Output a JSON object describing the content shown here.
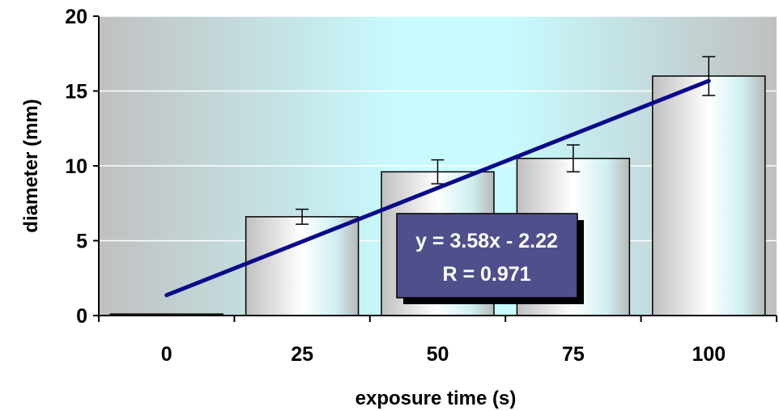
{
  "chart_data": {
    "type": "bar",
    "categories": [
      "0",
      "25",
      "50",
      "75",
      "100"
    ],
    "x": [
      0,
      25,
      50,
      75,
      100
    ],
    "values": [
      0.1,
      6.6,
      9.6,
      10.5,
      16.0
    ],
    "error": [
      0,
      0.5,
      0.8,
      0.9,
      1.3
    ],
    "xlabel": "exposure time (s)",
    "ylabel": "diameter (mm)",
    "ylim": [
      0,
      20
    ],
    "yticks": [
      "0",
      "5",
      "10",
      "15",
      "20"
    ],
    "grid": true,
    "trendline": {
      "slope": 3.58,
      "intercept": -2.22,
      "equation": "y = 3.58x - 2.22",
      "r_text": "R = 0.971"
    },
    "colors": {
      "trendline": "#0a0a8a",
      "label_box": "#4f4f8c",
      "bar_edge": "#c0c0c0",
      "bar_center": "#ffffff",
      "plot_edge": "#c0c0c0",
      "plot_center": "#c8fbff"
    }
  }
}
